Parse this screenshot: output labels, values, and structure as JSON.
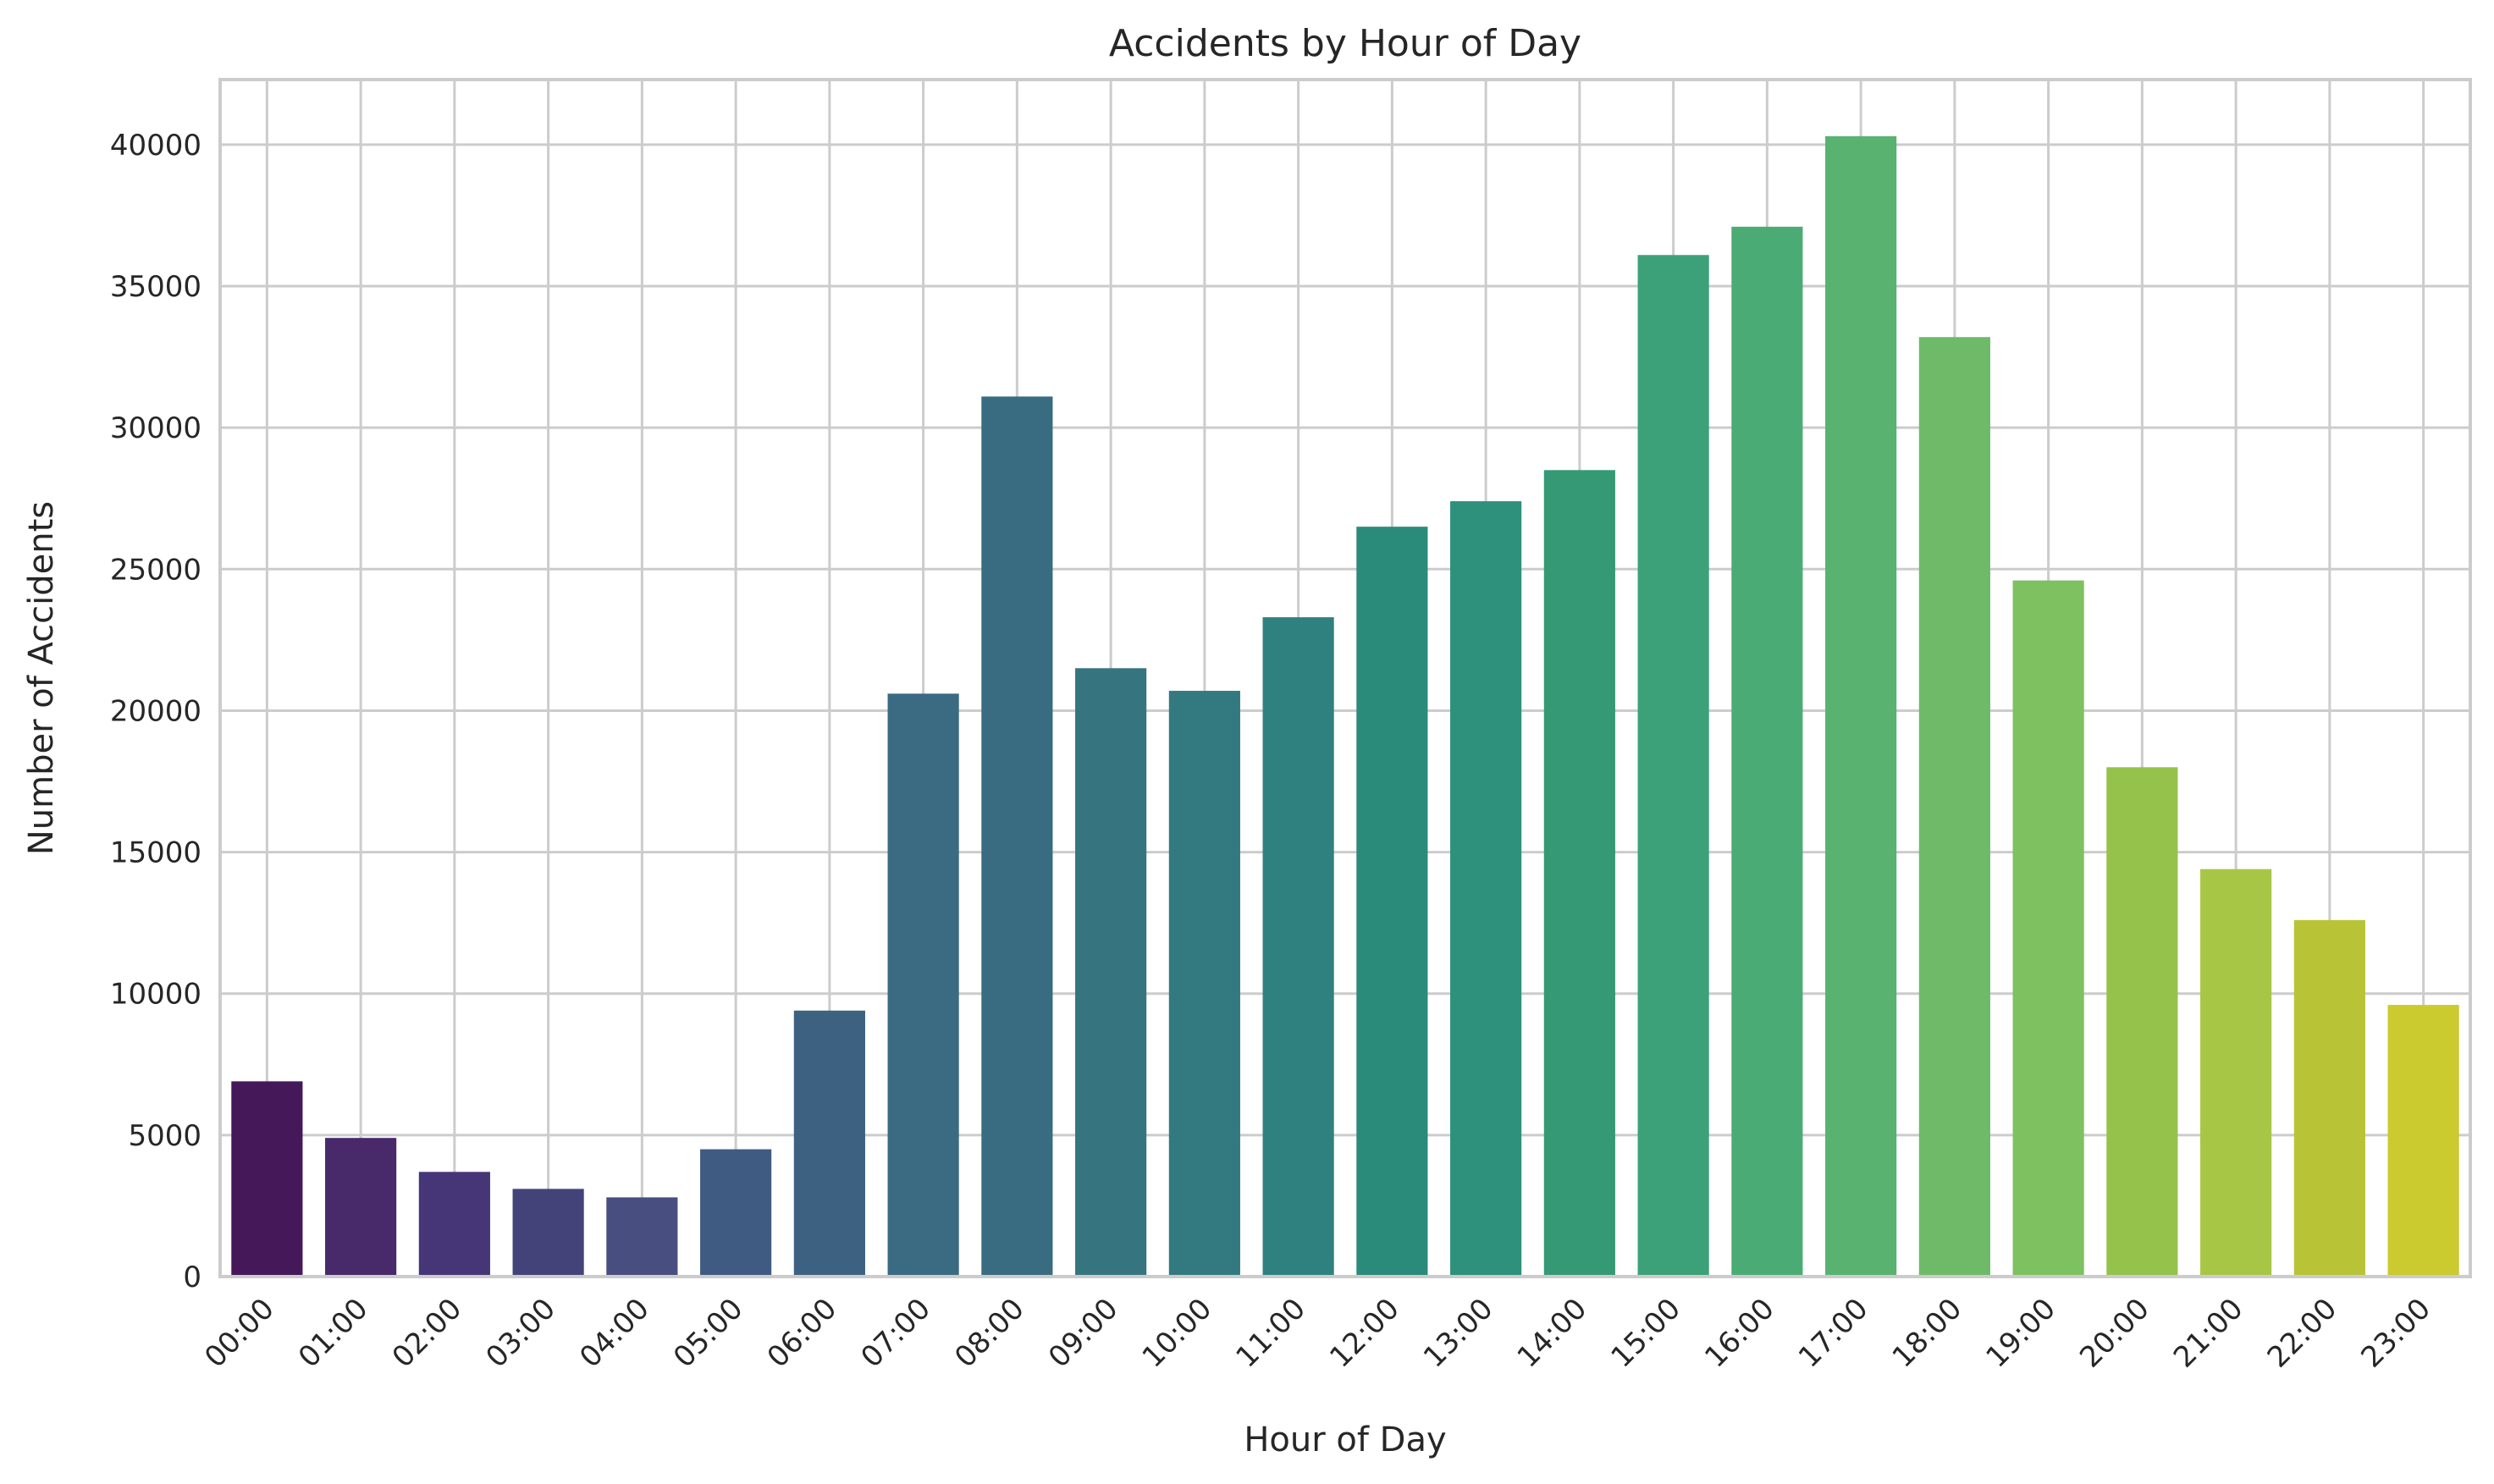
{
  "chart_data": {
    "type": "bar",
    "title": "Accidents by Hour of Day",
    "xlabel": "Hour of Day",
    "ylabel": "Number of Accidents",
    "categories": [
      "00:00",
      "01:00",
      "02:00",
      "03:00",
      "04:00",
      "05:00",
      "06:00",
      "07:00",
      "08:00",
      "09:00",
      "10:00",
      "11:00",
      "12:00",
      "13:00",
      "14:00",
      "15:00",
      "16:00",
      "17:00",
      "18:00",
      "19:00",
      "20:00",
      "21:00",
      "22:00",
      "23:00"
    ],
    "values": [
      6900,
      4900,
      3700,
      3100,
      2800,
      4500,
      9400,
      20600,
      31100,
      21500,
      20700,
      23300,
      26500,
      27400,
      28500,
      36100,
      37100,
      40300,
      33200,
      24600,
      18000,
      14400,
      12600,
      9600
    ],
    "colors": [
      "#45185a",
      "#48296a",
      "#463677",
      "#444379",
      "#484f80",
      "#3f5b82",
      "#3d6181",
      "#3b6a83",
      "#396c80",
      "#367580",
      "#337a80",
      "#2e817f",
      "#2b8b7a",
      "#2d917c",
      "#359976",
      "#3ca179",
      "#4bab74",
      "#59b270",
      "#6fba68",
      "#7ec160",
      "#95c24b",
      "#a8c645",
      "#b8c436",
      "#cbca2f"
    ],
    "yticks": [
      0,
      5000,
      10000,
      15000,
      20000,
      25000,
      30000,
      35000,
      40000
    ],
    "ylim": [
      0,
      42300
    ],
    "grid": true,
    "legend": false
  }
}
